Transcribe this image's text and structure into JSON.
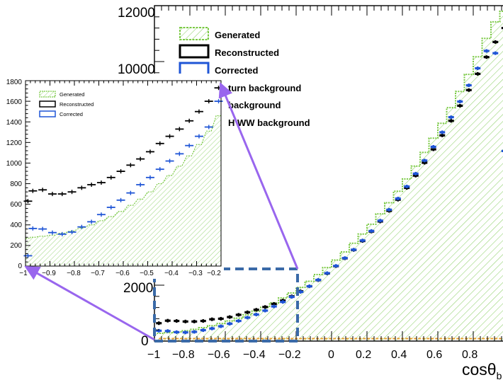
{
  "chart_data": [
    {
      "type": "bar",
      "title": "",
      "xlabel": "cosθ",
      "xlabel_subscript": "b",
      "ylabel": "",
      "xlim": [
        -1,
        1
      ],
      "ylim": [
        0,
        12000
      ],
      "x_tick_labels": [
        "−1",
        "−0.8",
        "−0.6",
        "−0.4",
        "−0.2",
        "0",
        "0.2",
        "0.4",
        "0.6",
        "0.8"
      ],
      "y_tick_labels": [
        "0",
        "2000",
        "10000",
        "12000"
      ],
      "legend_position": "top-left",
      "legend": [
        "Generated",
        "Reconstructed",
        "Corrected",
        "turn background",
        "background",
        "H WW background"
      ],
      "x": [
        -0.975,
        -0.925,
        -0.875,
        -0.825,
        -0.775,
        -0.725,
        -0.675,
        -0.625,
        -0.575,
        -0.525,
        -0.475,
        -0.425,
        -0.375,
        -0.325,
        -0.275,
        -0.225,
        -0.175,
        -0.125,
        -0.075,
        -0.025,
        0.025,
        0.075,
        0.125,
        0.175,
        0.225,
        0.275,
        0.325,
        0.375,
        0.425,
        0.475,
        0.525,
        0.575,
        0.625,
        0.675,
        0.725,
        0.775,
        0.825,
        0.875,
        0.925,
        0.975
      ],
      "series": [
        {
          "name": "Generated",
          "kind": "hatched-histogram",
          "values": [
            280,
            300,
            330,
            370,
            420,
            480,
            550,
            630,
            720,
            820,
            940,
            1070,
            1210,
            1370,
            1540,
            1720,
            1920,
            2140,
            2380,
            2630,
            2900,
            3190,
            3500,
            3830,
            4180,
            4550,
            4950,
            5360,
            5800,
            6260,
            6750,
            7260,
            7790,
            8350,
            8930,
            9540,
            10170,
            10830,
            11420,
            11800
          ]
        },
        {
          "name": "Reconstructed",
          "kind": "markers",
          "values": [
            640,
            730,
            720,
            700,
            700,
            720,
            780,
            800,
            860,
            940,
            1030,
            1120,
            1220,
            1330,
            1450,
            1600,
            1780,
            1960,
            2180,
            2420,
            2680,
            2960,
            3260,
            3580,
            3920,
            4280,
            4660,
            5060,
            5480,
            5920,
            6380,
            6860,
            7360,
            7880,
            8420,
            8980,
            9560,
            10160,
            10700,
            11200
          ]
        },
        {
          "name": "Corrected",
          "kind": "markers",
          "values": [
            370,
            360,
            320,
            310,
            330,
            390,
            450,
            530,
            620,
            720,
            840,
            950,
            1090,
            1240,
            1400,
            1580,
            1760,
            1960,
            2190,
            2430,
            2690,
            2970,
            3270,
            3600,
            3940,
            4310,
            4700,
            5100,
            5530,
            5990,
            6460,
            6950,
            7470,
            8010,
            8570,
            9150,
            9760,
            10380,
            10300,
            6800
          ]
        },
        {
          "name": "background",
          "kind": "line",
          "color": "#e8a030",
          "values": [
            90,
            90,
            90,
            90,
            90,
            90,
            90,
            90,
            90,
            90,
            90,
            90,
            90,
            90,
            90,
            90,
            90,
            90,
            90,
            90,
            90,
            90,
            90,
            90,
            90,
            90,
            90,
            90,
            90,
            90,
            90,
            90,
            90,
            90,
            90,
            90,
            90,
            90,
            90,
            90
          ]
        }
      ]
    },
    {
      "type": "bar",
      "title": "",
      "xlabel": "",
      "ylabel": "",
      "xlim": [
        -1,
        -0.2
      ],
      "ylim": [
        0,
        1800
      ],
      "x_tick_labels": [
        "−1",
        "−0.9",
        "−0.8",
        "−0.7",
        "−0.6",
        "−0.5",
        "−0.4",
        "−0.3",
        "−0.2"
      ],
      "y_tick_labels": [
        "0",
        "200",
        "400",
        "600",
        "800",
        "1000",
        "1200",
        "1400",
        "1600",
        "1800"
      ],
      "legend_position": "top-left",
      "legend": [
        "Generated",
        "Reconstructed",
        "Corrected"
      ],
      "x": [
        -0.99,
        -0.97,
        -0.93,
        -0.89,
        -0.85,
        -0.81,
        -0.77,
        -0.73,
        -0.69,
        -0.65,
        -0.61,
        -0.57,
        -0.53,
        -0.49,
        -0.45,
        -0.41,
        -0.37,
        -0.33,
        -0.29,
        -0.25,
        -0.21
      ],
      "series": [
        {
          "name": "Generated",
          "kind": "hatched-histogram",
          "values": [
            270,
            280,
            290,
            300,
            320,
            340,
            370,
            400,
            440,
            480,
            530,
            590,
            650,
            720,
            800,
            880,
            970,
            1070,
            1180,
            1310,
            1460
          ]
        },
        {
          "name": "Reconstructed",
          "kind": "markers",
          "values": [
            630,
            730,
            740,
            700,
            700,
            720,
            760,
            790,
            810,
            860,
            920,
            980,
            1040,
            1110,
            1190,
            1260,
            1330,
            1410,
            1500,
            1600,
            1730
          ]
        },
        {
          "name": "Corrected",
          "kind": "markers",
          "values": [
            100,
            365,
            360,
            325,
            310,
            330,
            380,
            430,
            500,
            570,
            640,
            710,
            790,
            860,
            940,
            1020,
            1090,
            1170,
            1260,
            1350,
            1600
          ]
        }
      ]
    }
  ],
  "colors": {
    "generated": "#7ac943",
    "reconstructed": "#000000",
    "corrected": "#1f55d6",
    "background": "#e8a030",
    "zoom_box": "#3a6aa8",
    "arrow": "#9966ee"
  }
}
